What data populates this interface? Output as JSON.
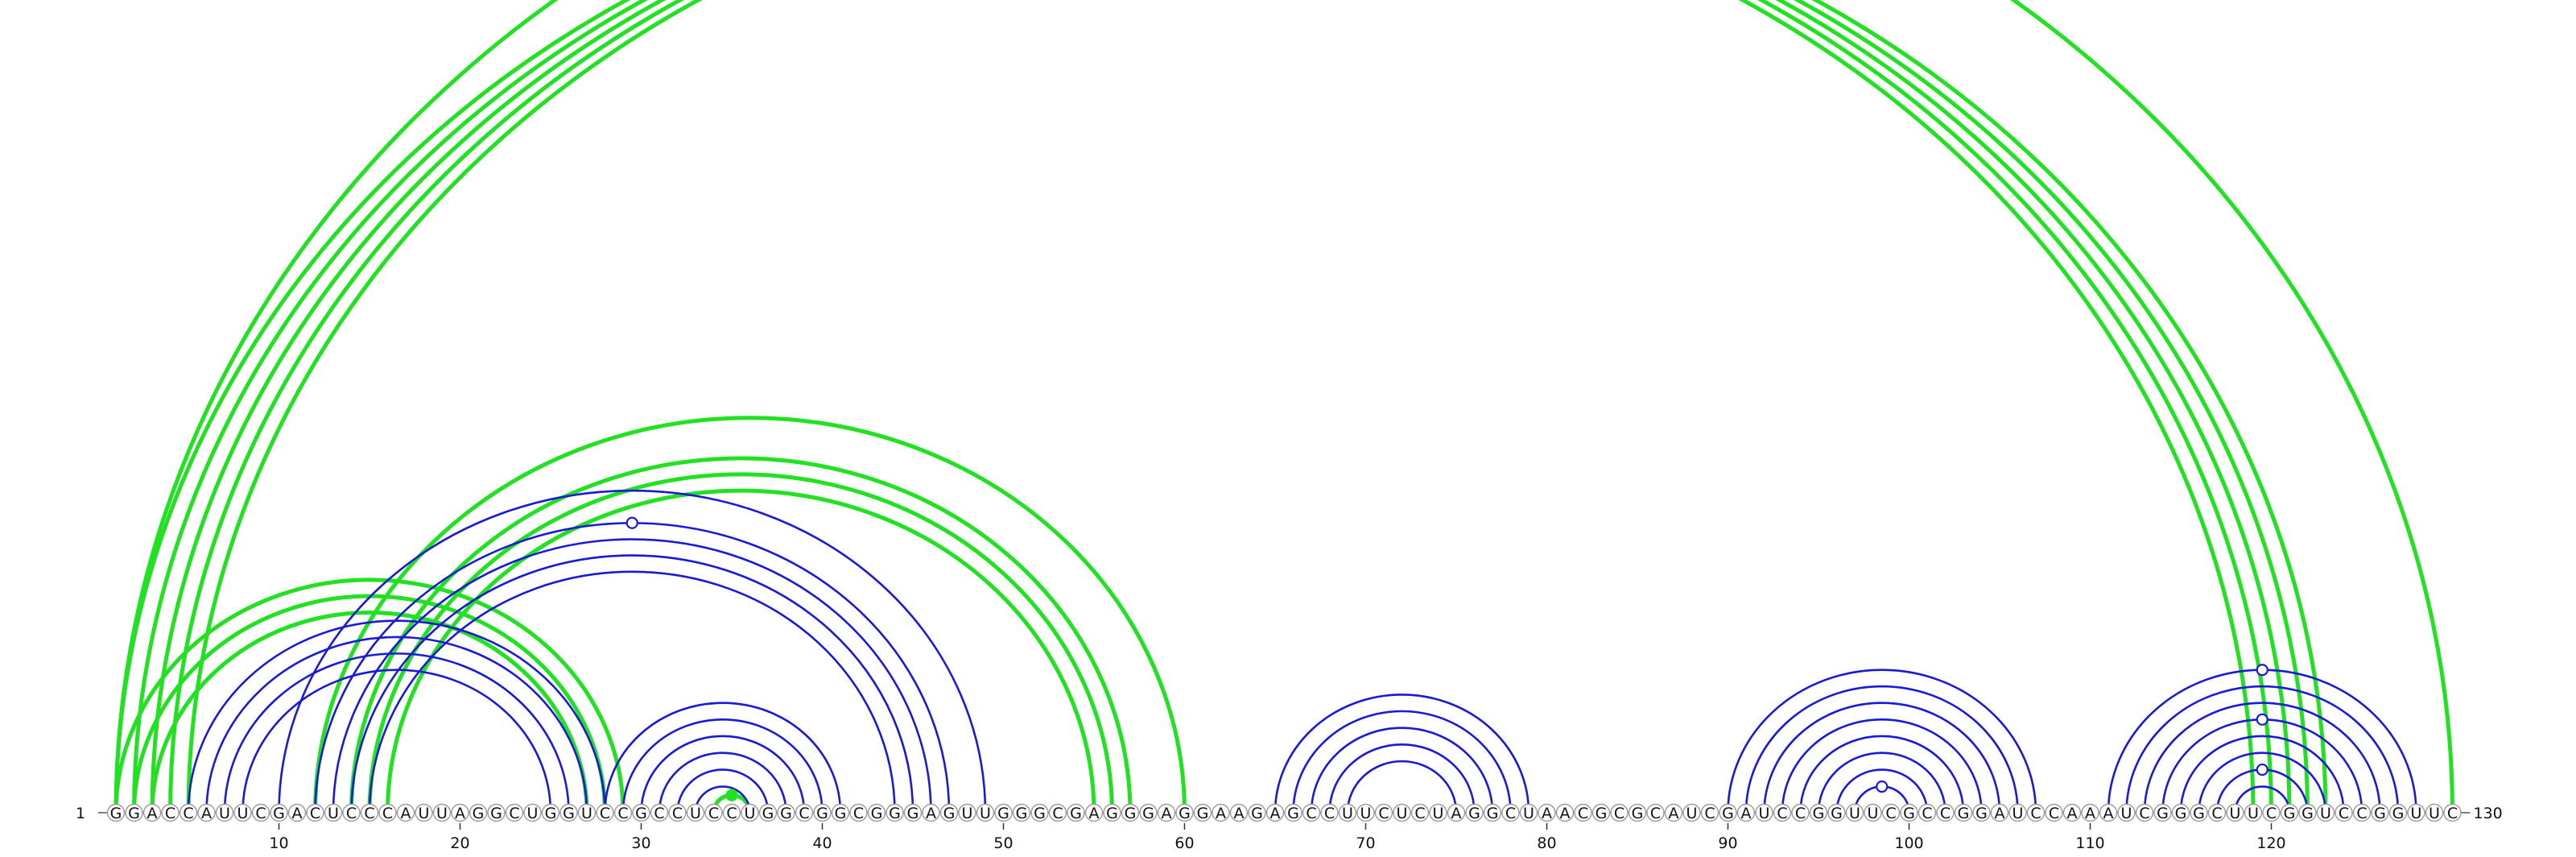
{
  "diagram": {
    "sequence": "GGACCAUUCGACUCCCAUUAGGCUGGUCCGCCUCCUGGCGGCGGGAGUUGGGCGAGGGAGGAAGAGCCUUCUCUAGGCUAACGCGCAUCGAUCCGGUUCGCCGGAUCCAAAUCGGGCUUCGGUCCGGUUC",
    "start_label": "1",
    "end_label": "130",
    "tick_labels": [
      "10",
      "20",
      "30",
      "40",
      "50",
      "60",
      "70",
      "80",
      "90",
      "100",
      "110",
      "120"
    ],
    "colors": {
      "blue_pairs": "#1a1ad6",
      "green_pairs": "#22e022",
      "circle_stroke": "#9a9a9a"
    },
    "blue_pairs": [
      [
        5,
        28
      ],
      [
        6,
        27
      ],
      [
        7,
        26
      ],
      [
        8,
        25
      ],
      [
        10,
        49
      ],
      [
        12,
        47
      ],
      [
        13,
        46
      ],
      [
        14,
        45
      ],
      [
        15,
        44
      ],
      [
        28,
        41
      ],
      [
        29,
        40
      ],
      [
        30,
        39
      ],
      [
        31,
        38
      ],
      [
        32,
        37
      ],
      [
        33,
        36
      ],
      [
        65,
        79
      ],
      [
        66,
        78
      ],
      [
        67,
        77
      ],
      [
        68,
        76
      ],
      [
        69,
        75
      ],
      [
        90,
        107
      ],
      [
        91,
        106
      ],
      [
        92,
        105
      ],
      [
        93,
        104
      ],
      [
        94,
        103
      ],
      [
        95,
        102
      ],
      [
        96,
        101
      ],
      [
        97,
        100
      ],
      [
        111,
        128
      ],
      [
        112,
        127
      ],
      [
        113,
        126
      ],
      [
        114,
        125
      ],
      [
        115,
        124
      ],
      [
        116,
        123
      ],
      [
        117,
        122
      ],
      [
        118,
        121
      ]
    ],
    "green_pairs": [
      [
        1,
        119
      ],
      [
        2,
        120
      ],
      [
        3,
        121
      ],
      [
        4,
        122
      ],
      [
        5,
        123
      ],
      [
        1,
        130
      ],
      [
        1,
        29
      ],
      [
        2,
        28
      ],
      [
        3,
        27
      ],
      [
        12,
        60
      ],
      [
        14,
        57
      ],
      [
        15,
        56
      ],
      [
        16,
        55
      ],
      [
        34,
        36
      ]
    ],
    "markers": [
      {
        "pair": [
          12,
          47
        ],
        "color": "blue",
        "filled": false
      },
      {
        "pair": [
          97,
          100
        ],
        "color": "blue",
        "filled": false
      },
      {
        "pair": [
          111,
          128
        ],
        "color": "blue",
        "filled": false
      },
      {
        "pair": [
          114,
          125
        ],
        "color": "blue",
        "filled": false
      },
      {
        "pair": [
          117,
          122
        ],
        "color": "blue",
        "filled": false
      },
      {
        "pair": [
          34,
          36
        ],
        "color": "green",
        "filled": true
      }
    ]
  }
}
